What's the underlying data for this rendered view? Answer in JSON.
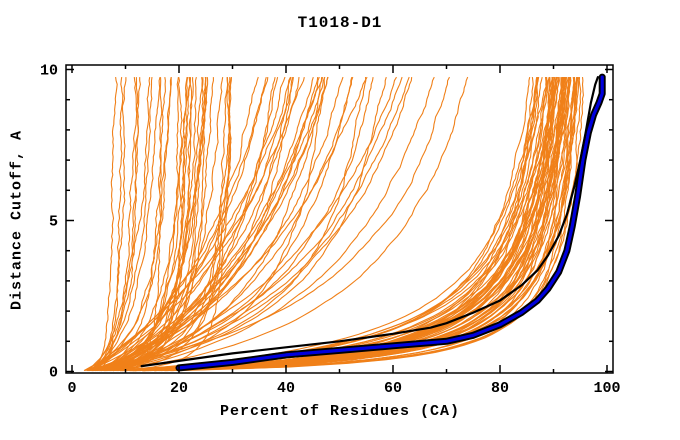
{
  "page": {
    "background": "#ffffff",
    "text_color": "#000000"
  },
  "chart_data": {
    "type": "line",
    "title": "T1018-D1",
    "xlabel": "Percent of Residues (CA)",
    "ylabel": "Distance Cutoff, A",
    "xlim": [
      0,
      100
    ],
    "ylim": [
      0,
      10
    ],
    "x_major_ticks": [
      0,
      20,
      40,
      60,
      80,
      100
    ],
    "x_minor_step": 10,
    "y_major_ticks": [
      0,
      5,
      10
    ],
    "y_minor_step": 1,
    "grid": false,
    "legend": "none",
    "frame_color": "#000000",
    "tick_style": "inward, mirrored on top and right frame",
    "series": [
      {
        "name": "server-model-ensemble",
        "role": "all predicted models (cumulative percent of CA residues under distance cutoff)",
        "type": "ensemble",
        "color": "#f08019",
        "count": 130,
        "seed": 7,
        "x_start": [
          2,
          6
        ],
        "y_top": 9.75,
        "groups": [
          {
            "n": 60,
            "label": "good models hugging right edge",
            "xf": [
              88,
              99.5
            ],
            "skew": 0.35,
            "k": [
              0.5,
              1.4
            ],
            "m": [
              0.55,
              0.9
            ]
          },
          {
            "n": 35,
            "label": "mid-quality diagonal models",
            "xf": [
              40,
              95
            ],
            "skew": 1.0,
            "k": [
              1.5,
              9.0
            ],
            "m": [
              0.7,
              1.1
            ]
          },
          {
            "n": 35,
            "label": "poor models, steep left bundle",
            "xf": [
              8,
              32
            ],
            "skew": 1.0,
            "k": [
              0.3,
              3.0
            ],
            "m": [
              0.5,
              1.0
            ]
          }
        ]
      },
      {
        "name": "highlighted-model-black",
        "role": "highlighted reference curve (black)",
        "color": "#000000",
        "width": 2.2,
        "points": [
          [
            13,
            0.18
          ],
          [
            20,
            0.35
          ],
          [
            30,
            0.6
          ],
          [
            40,
            0.8
          ],
          [
            50,
            1.0
          ],
          [
            60,
            1.25
          ],
          [
            67,
            1.45
          ],
          [
            70,
            1.6
          ],
          [
            75,
            1.95
          ],
          [
            80,
            2.35
          ],
          [
            84,
            2.85
          ],
          [
            87,
            3.35
          ],
          [
            89,
            3.85
          ],
          [
            91,
            4.5
          ],
          [
            92.5,
            5.2
          ],
          [
            94,
            6.2
          ],
          [
            95,
            7.0
          ],
          [
            96,
            7.9
          ],
          [
            97,
            8.9
          ],
          [
            97.8,
            9.5
          ],
          [
            98.3,
            9.75
          ]
        ]
      },
      {
        "name": "highlighted-model-blue",
        "role": "highlighted best-model curve (blue with black edging)",
        "color": "#0000dd",
        "outline_color": "#000000",
        "width": 3.2,
        "outline_width": 7,
        "points": [
          [
            20,
            0.12
          ],
          [
            30,
            0.3
          ],
          [
            40,
            0.55
          ],
          [
            50,
            0.7
          ],
          [
            60,
            0.85
          ],
          [
            70,
            1.0
          ],
          [
            75,
            1.2
          ],
          [
            80,
            1.55
          ],
          [
            84,
            1.95
          ],
          [
            87,
            2.35
          ],
          [
            89,
            2.75
          ],
          [
            91,
            3.3
          ],
          [
            92.5,
            4.0
          ],
          [
            93.5,
            4.8
          ],
          [
            94.5,
            5.8
          ],
          [
            95.5,
            7.0
          ],
          [
            96.5,
            7.9
          ],
          [
            97.5,
            8.5
          ],
          [
            98.5,
            8.9
          ],
          [
            99.1,
            9.2
          ],
          [
            99.1,
            9.75
          ]
        ]
      }
    ]
  }
}
